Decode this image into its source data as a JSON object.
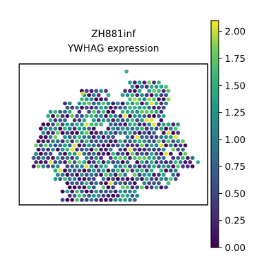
{
  "figure": {
    "title_line1": "ZH881inf",
    "title_line2": "YWHAG expression"
  },
  "chart_data": {
    "type": "scatter",
    "title": "ZH881inf\nYWHAG expression",
    "xlabel": "",
    "ylabel": "",
    "grid": false,
    "legend": "none",
    "colormap": "viridis",
    "color_range": [
      0.0,
      2.1
    ],
    "colorbar_ticks": [
      "0.00",
      "0.25",
      "0.50",
      "0.75",
      "1.00",
      "1.25",
      "1.50",
      "1.75",
      "2.00"
    ],
    "colorbar_tick_values": [
      0.0,
      0.25,
      0.5,
      0.75,
      1.0,
      1.25,
      1.5,
      1.75,
      2.0
    ],
    "point_color_scale": "spatial spots colored by expression level (viridis), values from 0.00 to ~2.1"
  },
  "colors": {
    "viridis_low": "#440154",
    "viridis_mid": "#21918c",
    "viridis_high": "#fde725",
    "frame": "#000000"
  }
}
